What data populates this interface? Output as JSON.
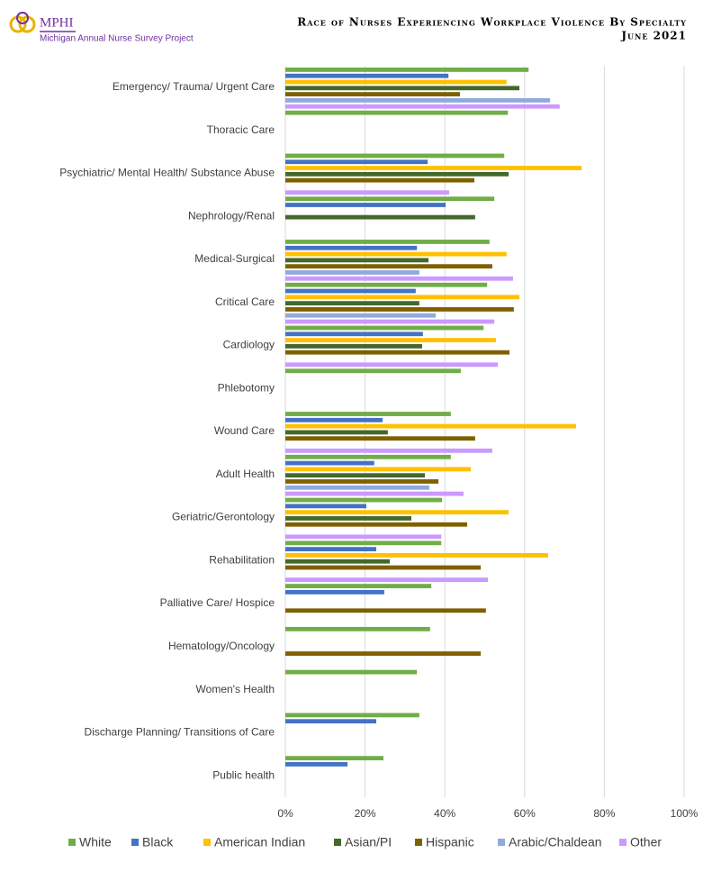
{
  "chart_data": {
    "type": "hbar",
    "title": "Race of Nurses Experiencing Workplace Violence By Specialty",
    "subtitle": "June 2021",
    "logo": {
      "name": "MPHI",
      "caption": "Michigan Annual Nurse Survey Project"
    },
    "categories": [
      "Emergency/ Trauma/ Urgent Care",
      "Thoracic Care",
      "Psychiatric/ Mental Health/ Substance Abuse",
      "Nephrology/Renal",
      "Medical-Surgical",
      "Critical Care",
      "Cardiology",
      "Phlebotomy",
      "Wound Care",
      "Adult Health",
      "Geriatric/Gerontology",
      "Rehabilitation",
      "Palliative Care/ Hospice",
      "Hematology/Oncology",
      "Women's Health",
      "Discharge Planning/ Transitions of Care",
      "Public health"
    ],
    "series": [
      {
        "name": "White",
        "color": "#70ad47",
        "values": [
          61,
          55.8,
          54.9,
          52.4,
          51.2,
          50.6,
          49.7,
          44,
          41.5,
          41.5,
          39.3,
          39.1,
          36.6,
          36.3,
          33,
          33.6,
          24.6
        ]
      },
      {
        "name": "Black",
        "color": "#4472c4",
        "values": [
          40.9,
          null,
          35.7,
          40.2,
          33,
          32.7,
          34.5,
          null,
          24.4,
          22.3,
          20.3,
          22.8,
          24.8,
          null,
          null,
          22.8,
          15.6
        ]
      },
      {
        "name": "American Indian",
        "color": "#ffc000",
        "values": [
          55.5,
          null,
          74.3,
          null,
          55.5,
          58.7,
          52.8,
          null,
          72.9,
          46.5,
          56,
          65.9,
          null,
          null,
          null,
          null,
          null
        ]
      },
      {
        "name": "Asian/PI",
        "color": "#43682b",
        "values": [
          58.7,
          null,
          56,
          47.6,
          35.9,
          33.6,
          34.3,
          null,
          25.7,
          35,
          31.6,
          26.2,
          null,
          null,
          null,
          null,
          null
        ]
      },
      {
        "name": "Hispanic",
        "color": "#7f6000",
        "values": [
          43.8,
          null,
          47.4,
          null,
          51.9,
          57.3,
          56.2,
          null,
          47.6,
          38.4,
          45.6,
          49,
          50.3,
          49,
          null,
          null,
          null
        ]
      },
      {
        "name": "Arabic/Chaldean",
        "color": "#8faadc",
        "values": [
          66.4,
          null,
          null,
          null,
          33.6,
          37.7,
          null,
          null,
          null,
          36.1,
          null,
          null,
          null,
          null,
          null,
          null,
          null
        ]
      },
      {
        "name": "Other",
        "color": "#cc99ff",
        "values": [
          68.8,
          null,
          41.1,
          null,
          57.1,
          52.4,
          53.3,
          null,
          51.9,
          44.7,
          39.1,
          50.8,
          null,
          null,
          null,
          null,
          null
        ]
      }
    ],
    "xlim": [
      0,
      100
    ],
    "xticks": [
      {
        "value": 0,
        "label": "0%"
      },
      {
        "value": 20,
        "label": "20%"
      },
      {
        "value": 40,
        "label": "40%"
      },
      {
        "value": 60,
        "label": "60%"
      },
      {
        "value": 80,
        "label": "80%"
      },
      {
        "value": 100,
        "label": "100%"
      }
    ],
    "grid": true
  }
}
